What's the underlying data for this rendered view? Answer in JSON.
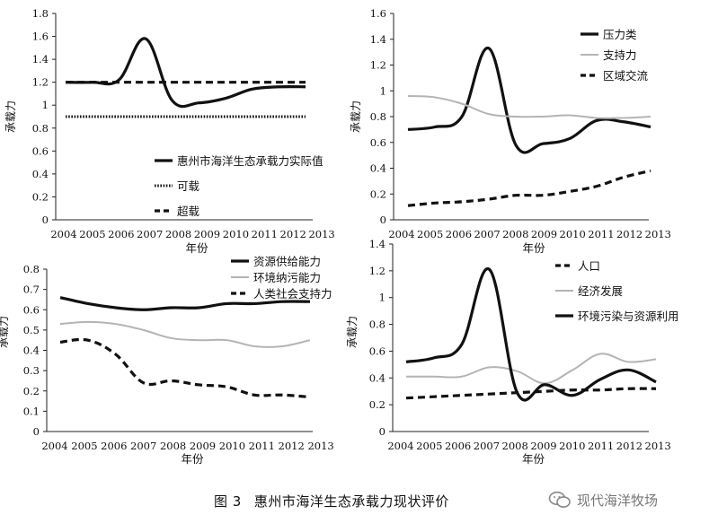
{
  "caption": {
    "figure_label": "图 3",
    "title": "惠州市海洋生态承载力现状评价"
  },
  "watermark": {
    "text": "现代海洋牧场"
  },
  "chart_data": [
    {
      "type": "line",
      "xlabel": "年份",
      "ylabel": "承载力",
      "ylim": [
        0,
        1.8
      ],
      "yticks": [
        0,
        0.2,
        0.4,
        0.6,
        0.8,
        1,
        1.2,
        1.4,
        1.6,
        1.8
      ],
      "xticks": [
        "2004",
        "2005",
        "2006",
        "2007",
        "2008",
        "2009",
        "2010",
        "2011",
        "2012",
        "2013"
      ],
      "x": [
        2004,
        2005,
        2006,
        2007,
        2008,
        2009,
        2010,
        2011,
        2012,
        2013
      ],
      "legend_position": "lower-right",
      "series": [
        {
          "name": "惠州市海洋生态承载力实际值",
          "style": "solid-black",
          "values": [
            1.2,
            1.2,
            1.22,
            1.58,
            1.04,
            1.02,
            1.06,
            1.14,
            1.16,
            1.16
          ]
        },
        {
          "name": "可载",
          "style": "dotted-black",
          "values": [
            0.9,
            0.9,
            0.9,
            0.9,
            0.9,
            0.9,
            0.9,
            0.9,
            0.9,
            0.9
          ]
        },
        {
          "name": "超载",
          "style": "dashed-black",
          "values": [
            1.2,
            1.2,
            1.2,
            1.2,
            1.2,
            1.2,
            1.2,
            1.2,
            1.2,
            1.2
          ]
        }
      ]
    },
    {
      "type": "line",
      "xlabel": "年份",
      "ylabel": "承载力",
      "ylim": [
        0,
        1.6
      ],
      "yticks": [
        0,
        0.2,
        0.4,
        0.6,
        0.8,
        1,
        1.2,
        1.4,
        1.6
      ],
      "xticks": [
        "2004",
        "2005",
        "2006",
        "2007",
        "2008",
        "2009",
        "2010",
        "2011",
        "2012",
        "2013"
      ],
      "x": [
        2004,
        2005,
        2006,
        2007,
        2008,
        2009,
        2010,
        2011,
        2012,
        2013
      ],
      "legend_position": "top-right",
      "series": [
        {
          "name": "压力类",
          "style": "solid-black",
          "values": [
            0.7,
            0.72,
            0.8,
            1.33,
            0.58,
            0.59,
            0.63,
            0.77,
            0.76,
            0.72
          ]
        },
        {
          "name": "支持力",
          "style": "solid-gray",
          "values": [
            0.96,
            0.95,
            0.9,
            0.82,
            0.8,
            0.8,
            0.81,
            0.79,
            0.79,
            0.8
          ]
        },
        {
          "name": "区域交流",
          "style": "dashed-black",
          "values": [
            0.11,
            0.13,
            0.14,
            0.16,
            0.19,
            0.19,
            0.22,
            0.26,
            0.33,
            0.38
          ]
        }
      ]
    },
    {
      "type": "line",
      "xlabel": "年份",
      "ylabel": "承载力",
      "ylim": [
        0,
        0.8
      ],
      "yticks": [
        0,
        0.1,
        0.2,
        0.3,
        0.4,
        0.5,
        0.6,
        0.7,
        0.8
      ],
      "xticks": [
        "2004",
        "2005",
        "2006",
        "2007",
        "2008",
        "2009",
        "2010",
        "2011",
        "2012",
        "2013"
      ],
      "x": [
        2004,
        2005,
        2006,
        2007,
        2008,
        2009,
        2010,
        2011,
        2012,
        2013
      ],
      "legend_position": "top-right",
      "series": [
        {
          "name": "资源供给能力",
          "style": "solid-black",
          "values": [
            0.66,
            0.63,
            0.61,
            0.6,
            0.61,
            0.61,
            0.63,
            0.63,
            0.64,
            0.64
          ]
        },
        {
          "name": "环境纳污能力",
          "style": "solid-gray",
          "values": [
            0.53,
            0.54,
            0.53,
            0.5,
            0.46,
            0.45,
            0.45,
            0.42,
            0.42,
            0.45
          ]
        },
        {
          "name": "人类社会支持力",
          "style": "dashed-black",
          "values": [
            0.44,
            0.45,
            0.38,
            0.24,
            0.25,
            0.23,
            0.22,
            0.18,
            0.18,
            0.17
          ]
        }
      ]
    },
    {
      "type": "line",
      "xlabel": "年份",
      "ylabel": "承载力",
      "ylim": [
        0,
        1.4
      ],
      "yticks": [
        0,
        0.2,
        0.4,
        0.6,
        0.8,
        1,
        1.2,
        1.4
      ],
      "xticks": [
        "2004",
        "2005",
        "2006",
        "2007",
        "2008",
        "2009",
        "2010",
        "2011",
        "2012",
        "2013"
      ],
      "x": [
        2004,
        2005,
        2006,
        2007,
        2008,
        2009,
        2010,
        2011,
        2012,
        2013
      ],
      "legend_position": "top-right",
      "series": [
        {
          "name": "人口",
          "style": "dashed-black",
          "values": [
            0.25,
            0.26,
            0.27,
            0.28,
            0.29,
            0.3,
            0.31,
            0.31,
            0.32,
            0.32
          ]
        },
        {
          "name": "经济发展",
          "style": "solid-gray",
          "values": [
            0.41,
            0.41,
            0.41,
            0.48,
            0.45,
            0.36,
            0.46,
            0.58,
            0.52,
            0.54
          ]
        },
        {
          "name": "环境污染与资源利用",
          "style": "solid-black",
          "values": [
            0.52,
            0.55,
            0.65,
            1.21,
            0.29,
            0.35,
            0.27,
            0.39,
            0.46,
            0.37
          ]
        }
      ]
    }
  ]
}
